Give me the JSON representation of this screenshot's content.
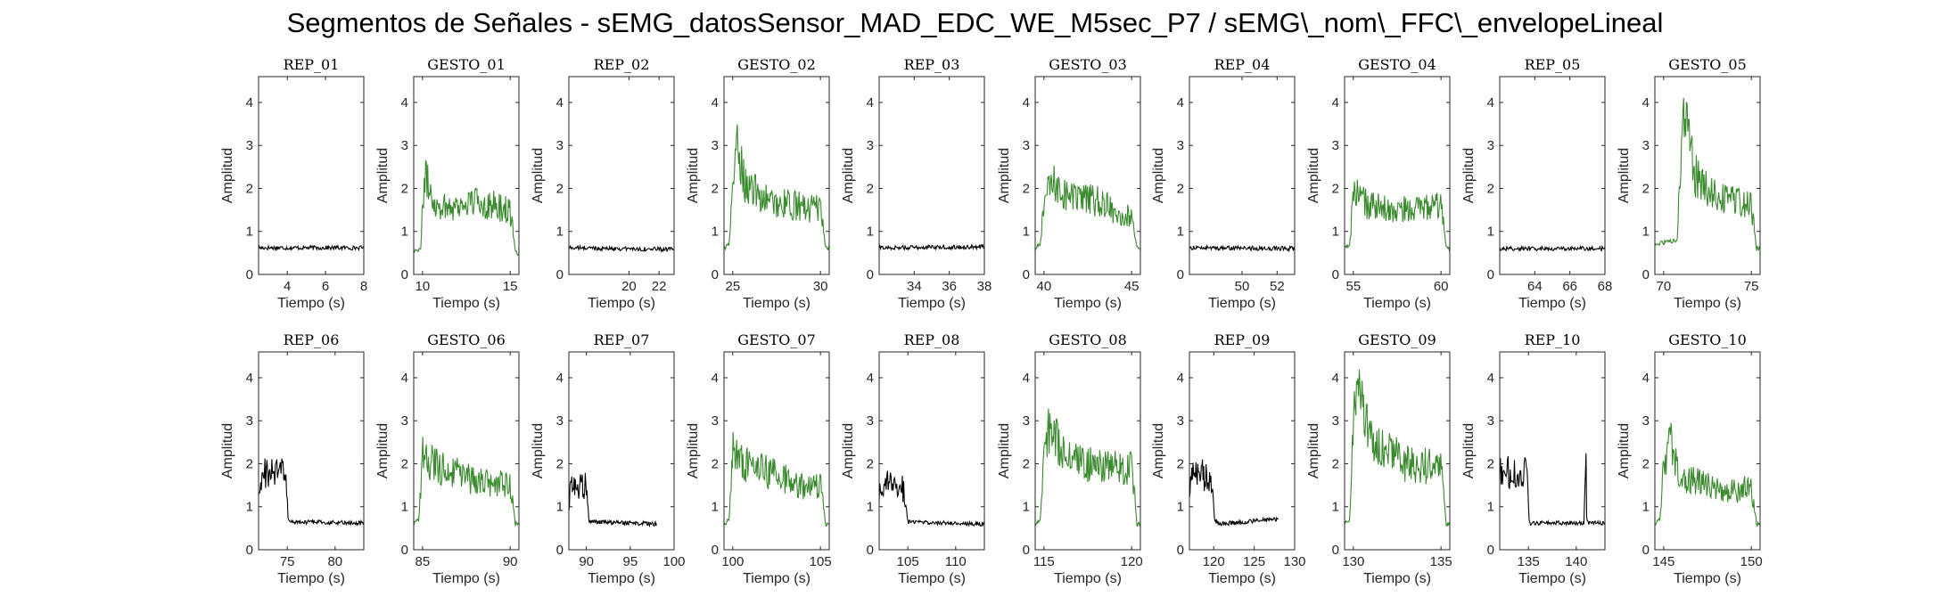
{
  "figure": {
    "title": "Segmentos de Señales - sEMG_datosSensor_MAD_EDC_WE_M5sec_P7 / sEMG\\_nom\\_FFC\\_envelopeLineal",
    "colors": {
      "rep": "#000000",
      "gesto": "#3a8a2e",
      "axis": "#262626",
      "text": "#262626"
    }
  },
  "chart_data": [
    {
      "type": "line",
      "title": "REP_01",
      "kind": "rep",
      "xlim": [
        2.5,
        8
      ],
      "xticks": [
        4,
        6,
        8
      ],
      "ylim": [
        0,
        4.6
      ],
      "yticks": [
        0,
        1,
        2,
        3,
        4
      ],
      "xlabel": "Tiempo (s)",
      "ylabel": "Amplitud",
      "profile": [
        [
          2.5,
          0.62
        ],
        [
          8,
          0.62
        ]
      ]
    },
    {
      "type": "line",
      "title": "GESTO_01",
      "kind": "gesto",
      "xlim": [
        9.5,
        15.5
      ],
      "xticks": [
        10,
        15
      ],
      "ylim": [
        0,
        4.6
      ],
      "yticks": [
        0,
        1,
        2,
        3,
        4
      ],
      "xlabel": "Tiempo (s)",
      "ylabel": "Amplitud",
      "profile": [
        [
          9.5,
          0.55
        ],
        [
          9.9,
          0.6
        ],
        [
          10.1,
          2.3
        ],
        [
          10.8,
          1.6
        ],
        [
          12,
          1.6
        ],
        [
          13,
          1.7
        ],
        [
          15,
          1.5
        ],
        [
          15.3,
          0.5
        ],
        [
          15.5,
          0.5
        ]
      ]
    },
    {
      "type": "line",
      "title": "REP_02",
      "kind": "rep",
      "xlim": [
        16,
        23
      ],
      "xticks": [
        20,
        22
      ],
      "ylim": [
        0,
        4.6
      ],
      "yticks": [
        0,
        1,
        2,
        3,
        4
      ],
      "xlabel": "Tiempo (s)",
      "ylabel": "Amplitud",
      "profile": [
        [
          16,
          0.62
        ],
        [
          23,
          0.58
        ]
      ]
    },
    {
      "type": "line",
      "title": "GESTO_02",
      "kind": "gesto",
      "xlim": [
        24.5,
        30.5
      ],
      "xticks": [
        25,
        30
      ],
      "ylim": [
        0,
        4.6
      ],
      "yticks": [
        0,
        1,
        2,
        3,
        4
      ],
      "xlabel": "Tiempo (s)",
      "ylabel": "Amplitud",
      "profile": [
        [
          24.5,
          0.6
        ],
        [
          24.8,
          0.7
        ],
        [
          25,
          2.2
        ],
        [
          25.3,
          3.0
        ],
        [
          25.7,
          2.1
        ],
        [
          27,
          1.7
        ],
        [
          28.5,
          1.6
        ],
        [
          30,
          1.5
        ],
        [
          30.3,
          0.6
        ],
        [
          30.5,
          0.6
        ]
      ]
    },
    {
      "type": "line",
      "title": "REP_03",
      "kind": "rep",
      "xlim": [
        32,
        38
      ],
      "xticks": [
        34,
        36,
        38
      ],
      "ylim": [
        0,
        4.6
      ],
      "yticks": [
        0,
        1,
        2,
        3,
        4
      ],
      "xlabel": "Tiempo (s)",
      "ylabel": "Amplitud",
      "profile": [
        [
          32,
          0.62
        ],
        [
          38,
          0.64
        ]
      ]
    },
    {
      "type": "line",
      "title": "GESTO_03",
      "kind": "gesto",
      "xlim": [
        39.5,
        45.5
      ],
      "xticks": [
        40,
        45
      ],
      "ylim": [
        0,
        4.6
      ],
      "yticks": [
        0,
        1,
        2,
        3,
        4
      ],
      "xlabel": "Tiempo (s)",
      "ylabel": "Amplitud",
      "profile": [
        [
          39.5,
          0.6
        ],
        [
          39.8,
          0.7
        ],
        [
          40,
          1.8
        ],
        [
          40.5,
          2.1
        ],
        [
          41.5,
          1.8
        ],
        [
          43,
          1.7
        ],
        [
          45,
          1.3
        ],
        [
          45.3,
          0.6
        ],
        [
          45.5,
          0.6
        ]
      ]
    },
    {
      "type": "line",
      "title": "REP_04",
      "kind": "rep",
      "xlim": [
        47,
        53
      ],
      "xticks": [
        50,
        52
      ],
      "ylim": [
        0,
        4.6
      ],
      "yticks": [
        0,
        1,
        2,
        3,
        4
      ],
      "xlabel": "Tiempo (s)",
      "ylabel": "Amplitud",
      "profile": [
        [
          47,
          0.62
        ],
        [
          53,
          0.6
        ]
      ]
    },
    {
      "type": "line",
      "title": "GESTO_04",
      "kind": "gesto",
      "xlim": [
        54.5,
        60.5
      ],
      "xticks": [
        55,
        60
      ],
      "ylim": [
        0,
        4.6
      ],
      "yticks": [
        0,
        1,
        2,
        3,
        4
      ],
      "xlabel": "Tiempo (s)",
      "ylabel": "Amplitud",
      "profile": [
        [
          54.5,
          0.6
        ],
        [
          54.8,
          0.7
        ],
        [
          55,
          2.0
        ],
        [
          55.8,
          1.6
        ],
        [
          57,
          1.5
        ],
        [
          58.5,
          1.5
        ],
        [
          60,
          1.6
        ],
        [
          60.3,
          0.6
        ],
        [
          60.5,
          0.6
        ]
      ]
    },
    {
      "type": "line",
      "title": "REP_05",
      "kind": "rep",
      "xlim": [
        62,
        68
      ],
      "xticks": [
        64,
        66,
        68
      ],
      "ylim": [
        0,
        4.6
      ],
      "yticks": [
        0,
        1,
        2,
        3,
        4
      ],
      "xlabel": "Tiempo (s)",
      "ylabel": "Amplitud",
      "profile": [
        [
          62,
          0.6
        ],
        [
          68,
          0.6
        ]
      ]
    },
    {
      "type": "line",
      "title": "GESTO_05",
      "kind": "gesto",
      "xlim": [
        69.5,
        75.5
      ],
      "xticks": [
        70,
        75
      ],
      "ylim": [
        0,
        4.6
      ],
      "yticks": [
        0,
        1,
        2,
        3,
        4
      ],
      "xlabel": "Tiempo (s)",
      "ylabel": "Amplitud",
      "profile": [
        [
          69.5,
          0.7
        ],
        [
          70.8,
          0.8
        ],
        [
          71,
          3.2
        ],
        [
          71.3,
          3.8
        ],
        [
          71.8,
          2.3
        ],
        [
          73,
          1.8
        ],
        [
          75,
          1.6
        ],
        [
          75.3,
          0.6
        ],
        [
          75.5,
          0.6
        ]
      ]
    },
    {
      "type": "line",
      "title": "REP_06",
      "kind": "rep",
      "xlim": [
        72,
        83
      ],
      "xticks": [
        75,
        80
      ],
      "ylim": [
        0,
        4.6
      ],
      "yticks": [
        0,
        1,
        2,
        3,
        4
      ],
      "xlabel": "Tiempo (s)",
      "ylabel": "Amplitud",
      "profile": [
        [
          72,
          1.1
        ],
        [
          72.4,
          1.8
        ],
        [
          74.8,
          1.8
        ],
        [
          75.1,
          0.65
        ],
        [
          83,
          0.62
        ]
      ]
    },
    {
      "type": "line",
      "title": "GESTO_06",
      "kind": "gesto",
      "xlim": [
        84.5,
        90.5
      ],
      "xticks": [
        85,
        90
      ],
      "ylim": [
        0,
        4.6
      ],
      "yticks": [
        0,
        1,
        2,
        3,
        4
      ],
      "xlabel": "Tiempo (s)",
      "ylabel": "Amplitud",
      "profile": [
        [
          84.5,
          0.6
        ],
        [
          84.8,
          0.7
        ],
        [
          85,
          2.2
        ],
        [
          86,
          1.9
        ],
        [
          88,
          1.6
        ],
        [
          90,
          1.5
        ],
        [
          90.3,
          0.6
        ],
        [
          90.5,
          0.6
        ]
      ]
    },
    {
      "type": "line",
      "title": "REP_07",
      "kind": "rep",
      "xlim": [
        88,
        100
      ],
      "xticks": [
        90,
        95,
        100
      ],
      "ylim": [
        0,
        4.6
      ],
      "yticks": [
        0,
        1,
        2,
        3,
        4
      ],
      "xlabel": "Tiempo (s)",
      "ylabel": "Amplitud",
      "profile": [
        [
          88,
          1.1
        ],
        [
          88.3,
          1.5
        ],
        [
          90,
          1.5
        ],
        [
          90.3,
          0.65
        ],
        [
          98,
          0.6
        ]
      ]
    },
    {
      "type": "line",
      "title": "GESTO_07",
      "kind": "gesto",
      "xlim": [
        99.5,
        105.5
      ],
      "xticks": [
        100,
        105
      ],
      "ylim": [
        0,
        4.6
      ],
      "yticks": [
        0,
        1,
        2,
        3,
        4
      ],
      "xlabel": "Tiempo (s)",
      "ylabel": "Amplitud",
      "profile": [
        [
          99.5,
          0.6
        ],
        [
          99.8,
          0.7
        ],
        [
          100,
          2.4
        ],
        [
          100.6,
          2.0
        ],
        [
          102,
          1.8
        ],
        [
          104,
          1.5
        ],
        [
          105,
          1.5
        ],
        [
          105.3,
          0.6
        ],
        [
          105.5,
          0.6
        ]
      ]
    },
    {
      "type": "line",
      "title": "REP_08",
      "kind": "rep",
      "xlim": [
        102,
        113
      ],
      "xticks": [
        105,
        110
      ],
      "ylim": [
        0,
        4.6
      ],
      "yticks": [
        0,
        1,
        2,
        3,
        4
      ],
      "xlabel": "Tiempo (s)",
      "ylabel": "Amplitud",
      "profile": [
        [
          102,
          1.3
        ],
        [
          102.3,
          1.6
        ],
        [
          104.6,
          1.4
        ],
        [
          105,
          0.65
        ],
        [
          113,
          0.6
        ]
      ]
    },
    {
      "type": "line",
      "title": "GESTO_08",
      "kind": "gesto",
      "xlim": [
        114.5,
        120.5
      ],
      "xticks": [
        115,
        120
      ],
      "ylim": [
        0,
        4.6
      ],
      "yticks": [
        0,
        1,
        2,
        3,
        4
      ],
      "xlabel": "Tiempo (s)",
      "ylabel": "Amplitud",
      "profile": [
        [
          114.5,
          0.6
        ],
        [
          114.8,
          0.7
        ],
        [
          115,
          2.2
        ],
        [
          115.4,
          3.0
        ],
        [
          116,
          2.3
        ],
        [
          118,
          1.9
        ],
        [
          120,
          1.9
        ],
        [
          120.3,
          0.6
        ],
        [
          120.5,
          0.6
        ]
      ]
    },
    {
      "type": "line",
      "title": "REP_09",
      "kind": "rep",
      "xlim": [
        117,
        130
      ],
      "xticks": [
        120,
        125,
        130
      ],
      "ylim": [
        0,
        4.6
      ],
      "yticks": [
        0,
        1,
        2,
        3,
        4
      ],
      "xlabel": "Tiempo (s)",
      "ylabel": "Amplitud",
      "profile": [
        [
          117,
          1.3
        ],
        [
          117.3,
          1.8
        ],
        [
          119.8,
          1.7
        ],
        [
          120.1,
          0.65
        ],
        [
          121,
          0.6
        ],
        [
          128,
          0.72
        ]
      ]
    },
    {
      "type": "line",
      "title": "GESTO_09",
      "kind": "gesto",
      "xlim": [
        129.5,
        135.5
      ],
      "xticks": [
        130,
        135
      ],
      "ylim": [
        0,
        4.6
      ],
      "yticks": [
        0,
        1,
        2,
        3,
        4
      ],
      "xlabel": "Tiempo (s)",
      "ylabel": "Amplitud",
      "profile": [
        [
          129.5,
          0.6
        ],
        [
          129.8,
          0.7
        ],
        [
          130,
          3.0
        ],
        [
          130.4,
          3.8
        ],
        [
          131,
          2.6
        ],
        [
          133,
          2.0
        ],
        [
          135,
          1.9
        ],
        [
          135.3,
          0.6
        ],
        [
          135.5,
          0.6
        ]
      ]
    },
    {
      "type": "line",
      "title": "REP_10",
      "kind": "rep",
      "xlim": [
        132,
        143
      ],
      "xticks": [
        135,
        140
      ],
      "ylim": [
        0,
        4.6
      ],
      "yticks": [
        0,
        1,
        2,
        3,
        4
      ],
      "xlabel": "Tiempo (s)",
      "ylabel": "Amplitud",
      "profile": [
        [
          132,
          1.8
        ],
        [
          134.8,
          1.8
        ],
        [
          135.1,
          0.62
        ],
        [
          140.8,
          0.62
        ],
        [
          141,
          2.2
        ],
        [
          141.1,
          0.62
        ],
        [
          143,
          0.62
        ]
      ]
    },
    {
      "type": "line",
      "title": "GESTO_10",
      "kind": "gesto",
      "xlim": [
        144.5,
        150.5
      ],
      "xticks": [
        145,
        150
      ],
      "ylim": [
        0,
        4.6
      ],
      "yticks": [
        0,
        1,
        2,
        3,
        4
      ],
      "xlabel": "Tiempo (s)",
      "ylabel": "Amplitud",
      "profile": [
        [
          144.5,
          0.6
        ],
        [
          144.8,
          0.7
        ],
        [
          145,
          2.0
        ],
        [
          145.4,
          2.5
        ],
        [
          146,
          1.7
        ],
        [
          148,
          1.4
        ],
        [
          150,
          1.4
        ],
        [
          150.3,
          0.6
        ],
        [
          150.5,
          0.6
        ]
      ]
    }
  ]
}
